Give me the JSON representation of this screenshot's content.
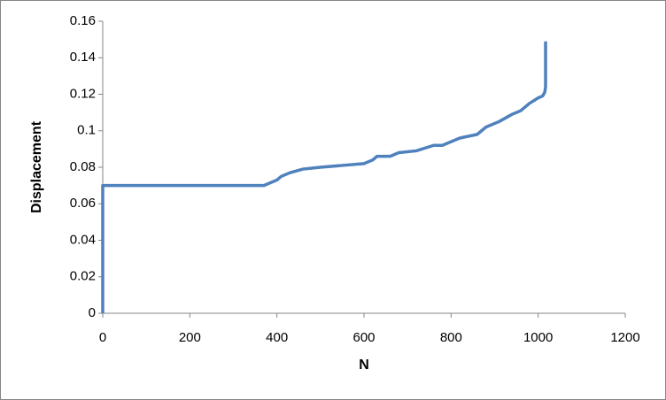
{
  "chart_data": {
    "type": "line",
    "x_label": "N",
    "y_label": "Displacement",
    "x": [
      0,
      0,
      370,
      390,
      400,
      410,
      430,
      460,
      500,
      550,
      600,
      610,
      620,
      630,
      660,
      680,
      720,
      760,
      780,
      800,
      820,
      860,
      880,
      910,
      940,
      960,
      980,
      1000,
      1010,
      1015,
      1017,
      1017
    ],
    "values": [
      0,
      0.07,
      0.07,
      0.072,
      0.073,
      0.075,
      0.077,
      0.079,
      0.08,
      0.081,
      0.082,
      0.083,
      0.084,
      0.086,
      0.086,
      0.088,
      0.089,
      0.092,
      0.092,
      0.094,
      0.096,
      0.098,
      0.102,
      0.105,
      0.109,
      0.111,
      0.115,
      0.118,
      0.119,
      0.121,
      0.124,
      0.149
    ],
    "color": "#4f81bd",
    "xlim": [
      0,
      1200
    ],
    "xticks": [
      0,
      200,
      400,
      600,
      800,
      1000,
      1200
    ],
    "ylim": [
      0,
      0.16
    ],
    "yticks": [
      0,
      0.02,
      0.04,
      0.06,
      0.08,
      0.1,
      0.12,
      0.14,
      0.16
    ],
    "grid": false
  }
}
